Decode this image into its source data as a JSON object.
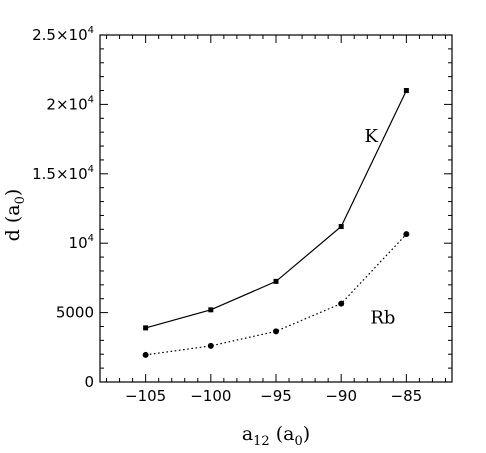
{
  "chart_data": {
    "type": "line",
    "xlabel": "a",
    "xlabel_sub": "12",
    "xlabel_unit_open": " (a",
    "xlabel_unit_sub": "0",
    "xlabel_unit_close": ")",
    "ylabel": "d",
    "ylabel_unit_open": " (a",
    "ylabel_unit_sub": "0",
    "ylabel_unit_close": ")",
    "xlim": [
      -108.5,
      -81.5
    ],
    "ylim": [
      0,
      25000
    ],
    "x_ticks": [
      -105,
      -100,
      -95,
      -90,
      -85
    ],
    "x_tick_labels": [
      "−105",
      "−100",
      "−95",
      "−90",
      "−85"
    ],
    "y_ticks": [
      0,
      5000,
      10000,
      15000,
      20000,
      25000
    ],
    "y_tick_labels": [
      {
        "base": "0",
        "exp": ""
      },
      {
        "base": "5000",
        "exp": ""
      },
      {
        "base": "10",
        "exp": "4"
      },
      {
        "base": "1.5×10",
        "exp": "4"
      },
      {
        "base": "2×10",
        "exp": "4"
      },
      {
        "base": "2.5×10",
        "exp": "4"
      }
    ],
    "grid": false,
    "series": [
      {
        "name": "K",
        "x": [
          -105,
          -100,
          -95,
          -90,
          -85
        ],
        "y": [
          3900,
          5200,
          7250,
          11200,
          21000
        ],
        "line_style": "solid",
        "marker": "square",
        "label_at": [
          -87.7,
          17300
        ]
      },
      {
        "name": "Rb",
        "x": [
          -105,
          -100,
          -95,
          -90,
          -85
        ],
        "y": [
          1950,
          2600,
          3650,
          5650,
          10650
        ],
        "line_style": "dotted",
        "marker": "circle",
        "label_at": [
          -86.8,
          4200
        ]
      }
    ]
  }
}
